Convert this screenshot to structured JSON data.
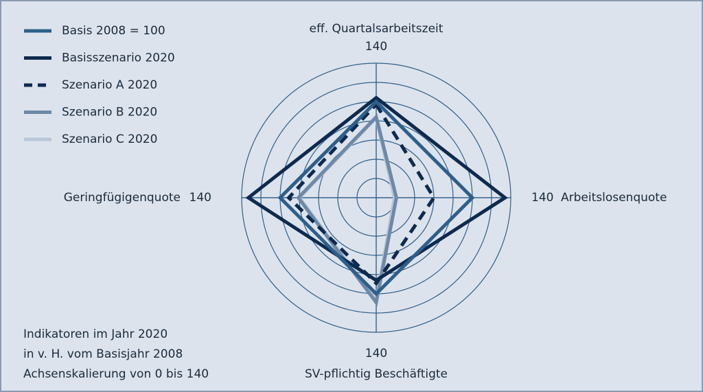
{
  "chart_data": {
    "type": "radar",
    "axes": [
      "eff. Quartalsarbeitszeit",
      "Arbeitslosenquote",
      "SV-pflichtig Beschäftigte",
      "Geringfügigenquote"
    ],
    "axis_max_label": 140,
    "rlim": [
      0,
      140
    ],
    "rticks": [
      20,
      40,
      60,
      80,
      100,
      120,
      140
    ],
    "series": [
      {
        "name": "Basis 2008 = 100",
        "color": "#2e5f8a",
        "dash": false,
        "values": [
          100,
          100,
          100,
          100
        ]
      },
      {
        "name": "Basisszenario 2020",
        "color": "#0d2a4f",
        "dash": false,
        "values": [
          104,
          134,
          86,
          133
        ]
      },
      {
        "name": "Szenario A 2020",
        "color": "#0d2a4f",
        "dash": true,
        "values": [
          97,
          60,
          89,
          91
        ]
      },
      {
        "name": "Szenario B 2020",
        "color": "#6d89a8",
        "dash": false,
        "values": [
          84,
          21,
          109,
          81
        ]
      },
      {
        "name": "Szenario C 2020",
        "color": "#b8c6d6",
        "dash": false,
        "values": [
          83,
          19,
          107,
          80
        ]
      }
    ],
    "notes": [
      "Indikatoren im Jahr 2020",
      "in v. H. vom Basisjahr 2008",
      "Achsenskalierung von 0 bis 140"
    ]
  }
}
